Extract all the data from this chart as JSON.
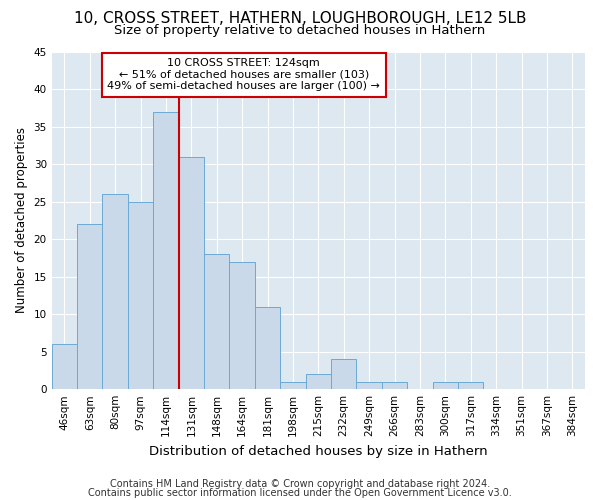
{
  "title1": "10, CROSS STREET, HATHERN, LOUGHBOROUGH, LE12 5LB",
  "title2": "Size of property relative to detached houses in Hathern",
  "xlabel": "Distribution of detached houses by size in Hathern",
  "ylabel": "Number of detached properties",
  "categories": [
    "46sqm",
    "63sqm",
    "80sqm",
    "97sqm",
    "114sqm",
    "131sqm",
    "148sqm",
    "164sqm",
    "181sqm",
    "198sqm",
    "215sqm",
    "232sqm",
    "249sqm",
    "266sqm",
    "283sqm",
    "300sqm",
    "317sqm",
    "334sqm",
    "351sqm",
    "367sqm",
    "384sqm"
  ],
  "values": [
    6,
    22,
    26,
    25,
    37,
    31,
    18,
    17,
    11,
    1,
    2,
    4,
    1,
    1,
    0,
    1,
    1,
    0,
    0,
    0,
    0
  ],
  "bar_color": "#c9d9ea",
  "bar_edge_color": "#6aaad4",
  "bar_width": 1.0,
  "vline_x": 4.5,
  "vline_color": "#cc0000",
  "ylim": [
    0,
    45
  ],
  "yticks": [
    0,
    5,
    10,
    15,
    20,
    25,
    30,
    35,
    40,
    45
  ],
  "annotation_text": "10 CROSS STREET: 124sqm\n← 51% of detached houses are smaller (103)\n49% of semi-detached houses are larger (100) →",
  "annotation_box_color": "#ffffff",
  "annotation_box_edge": "#cc0000",
  "footer1": "Contains HM Land Registry data © Crown copyright and database right 2024.",
  "footer2": "Contains public sector information licensed under the Open Government Licence v3.0.",
  "bg_color": "#dde8f0",
  "grid_color": "#ffffff",
  "fig_bg": "#ffffff",
  "title1_fontsize": 11,
  "title2_fontsize": 9.5,
  "xlabel_fontsize": 9.5,
  "ylabel_fontsize": 8.5,
  "tick_fontsize": 7.5,
  "ann_fontsize": 8,
  "footer_fontsize": 7
}
